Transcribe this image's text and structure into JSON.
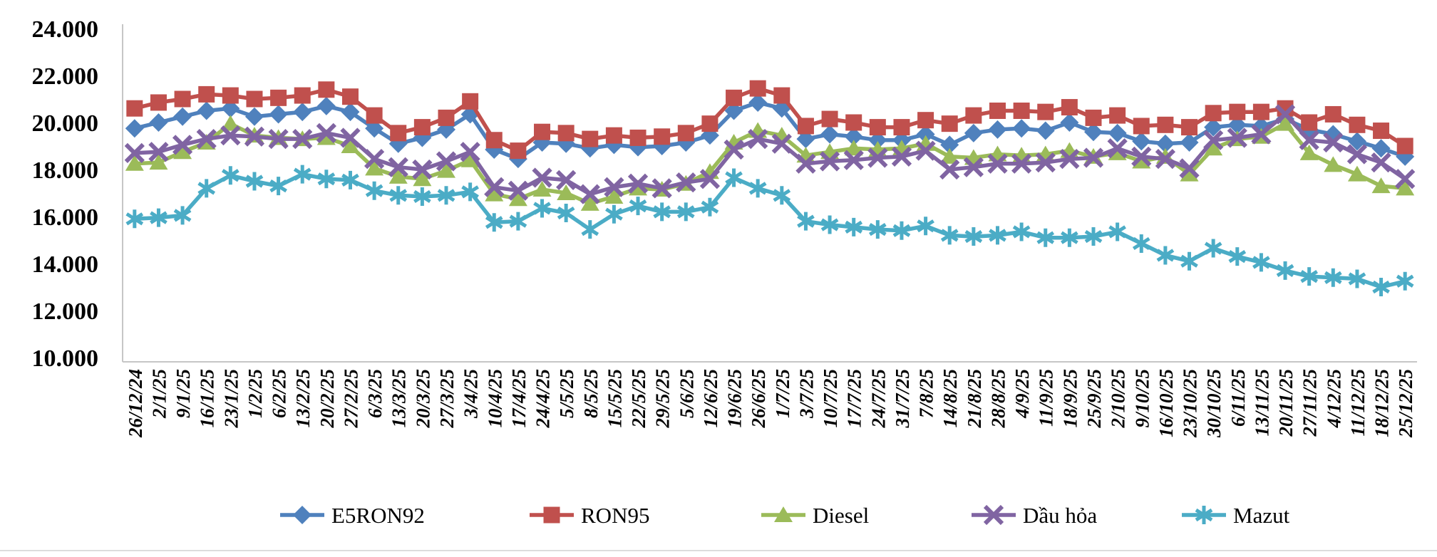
{
  "chart_data": {
    "type": "line",
    "title": "",
    "categories": [
      "26/12/24",
      "2/1/25",
      "9/1/25",
      "16/1/25",
      "23/1/25",
      "1/2/25",
      "6/2/25",
      "13/2/25",
      "20/2/25",
      "27/2/25",
      "6/3/25",
      "13/3/25",
      "20/3/25",
      "27/3/25",
      "3/4/25",
      "10/4/25",
      "17/4/25",
      "24/4/25",
      "5/5/25",
      "8/5/25",
      "15/5/25",
      "22/5/25",
      "29/5/25",
      "5/6/25",
      "12/6/25",
      "19/6/25",
      "26/6/25",
      "1/7/25",
      "3/7/25",
      "10/7/25",
      "17/7/25",
      "24/7/25",
      "31/7/25",
      "7/8/25",
      "14/8/25",
      "21/8/25",
      "28/8/25",
      "4/9/25",
      "11/9/25",
      "18/9/25",
      "25/9/25",
      "2/10/25",
      "9/10/25",
      "16/10/25",
      "23/10/25",
      "30/10/25",
      "6/11/25",
      "13/11/25",
      "20/11/25",
      "27/11/25",
      "4/12/25",
      "11/12/25",
      "18/12/25",
      "25/12/25"
    ],
    "series": [
      {
        "name": "E5RON92",
        "color": "#4F81BD",
        "marker": "diamond",
        "values": [
          19750,
          20000,
          20250,
          20500,
          20600,
          20250,
          20350,
          20450,
          20700,
          20450,
          19750,
          19100,
          19350,
          19700,
          20350,
          18850,
          18450,
          19150,
          19100,
          18900,
          19050,
          18950,
          19000,
          19150,
          19450,
          20500,
          20850,
          20600,
          19300,
          19500,
          19400,
          19250,
          19250,
          19500,
          19050,
          19550,
          19700,
          19750,
          19650,
          20000,
          19600,
          19550,
          19200,
          19100,
          19150,
          19800,
          19900,
          19850,
          20150,
          19700,
          19500,
          19200,
          18900,
          18550
        ]
      },
      {
        "name": "RON95",
        "color": "#C0504D",
        "marker": "square",
        "values": [
          20600,
          20850,
          21000,
          21200,
          21150,
          21000,
          21050,
          21150,
          21400,
          21100,
          20300,
          19550,
          19800,
          20200,
          20900,
          19250,
          18800,
          19600,
          19550,
          19300,
          19450,
          19350,
          19400,
          19550,
          19950,
          21050,
          21450,
          21150,
          19850,
          20150,
          20000,
          19800,
          19800,
          20100,
          19950,
          20300,
          20500,
          20500,
          20450,
          20650,
          20200,
          20300,
          19850,
          19900,
          19800,
          20400,
          20450,
          20450,
          20600,
          20000,
          20350,
          19900,
          19650,
          19000
        ]
      },
      {
        "name": "Diesel",
        "color": "#9BBB59",
        "marker": "triangle",
        "values": [
          18250,
          18300,
          18750,
          19150,
          19950,
          19450,
          19350,
          19300,
          19350,
          19000,
          18050,
          17700,
          17600,
          17950,
          18400,
          16950,
          16750,
          17150,
          17000,
          16550,
          16850,
          17200,
          17150,
          17400,
          17900,
          19150,
          19650,
          19450,
          18600,
          18750,
          18900,
          18850,
          18900,
          19100,
          18550,
          18500,
          18650,
          18600,
          18650,
          18800,
          18550,
          18700,
          18350,
          18550,
          17800,
          18900,
          19300,
          19400,
          19950,
          18700,
          18200,
          17800,
          17300,
          17200
        ]
      },
      {
        "name": "Dầu hỏa",
        "color": "#8064A2",
        "marker": "x",
        "values": [
          18700,
          18750,
          19050,
          19300,
          19450,
          19400,
          19300,
          19300,
          19550,
          19350,
          18450,
          18100,
          18000,
          18350,
          18750,
          17250,
          17100,
          17650,
          17550,
          16950,
          17250,
          17400,
          17200,
          17450,
          17600,
          18850,
          19300,
          19100,
          18250,
          18350,
          18400,
          18500,
          18550,
          18800,
          18000,
          18100,
          18250,
          18250,
          18300,
          18450,
          18500,
          18900,
          18550,
          18450,
          18050,
          19250,
          19350,
          19500,
          20350,
          19250,
          19150,
          18650,
          18300,
          17600
        ]
      },
      {
        "name": "Mazut",
        "color": "#4BACC6",
        "marker": "star",
        "values": [
          15900,
          15950,
          16050,
          17200,
          17750,
          17500,
          17300,
          17800,
          17600,
          17550,
          17100,
          16900,
          16850,
          16900,
          17050,
          15750,
          15800,
          16350,
          16150,
          15450,
          16100,
          16450,
          16200,
          16200,
          16400,
          17650,
          17200,
          16900,
          15800,
          15650,
          15550,
          15450,
          15400,
          15600,
          15200,
          15150,
          15200,
          15350,
          15100,
          15100,
          15150,
          15350,
          14850,
          14350,
          14100,
          14650,
          14300,
          14050,
          13700,
          13450,
          13400,
          13350,
          13000,
          13250
        ]
      }
    ],
    "y_ticks": [
      {
        "label": "24.000",
        "value": 24000
      },
      {
        "label": "22.000",
        "value": 22000
      },
      {
        "label": "20.000",
        "value": 20000
      },
      {
        "label": "18.000",
        "value": 18000
      },
      {
        "label": "16.000",
        "value": 16000
      },
      {
        "label": "14.000",
        "value": 14000
      },
      {
        "label": "12.000",
        "value": 12000
      },
      {
        "label": "10.000",
        "value": 10000
      }
    ],
    "ylim": [
      10000,
      24000
    ],
    "xlabel": "",
    "ylabel": "",
    "grid": false,
    "legend_position": "bottom",
    "axis_color": "#c6c6c6",
    "divider_color": "#dcdcdc",
    "text_color": "#000000"
  }
}
